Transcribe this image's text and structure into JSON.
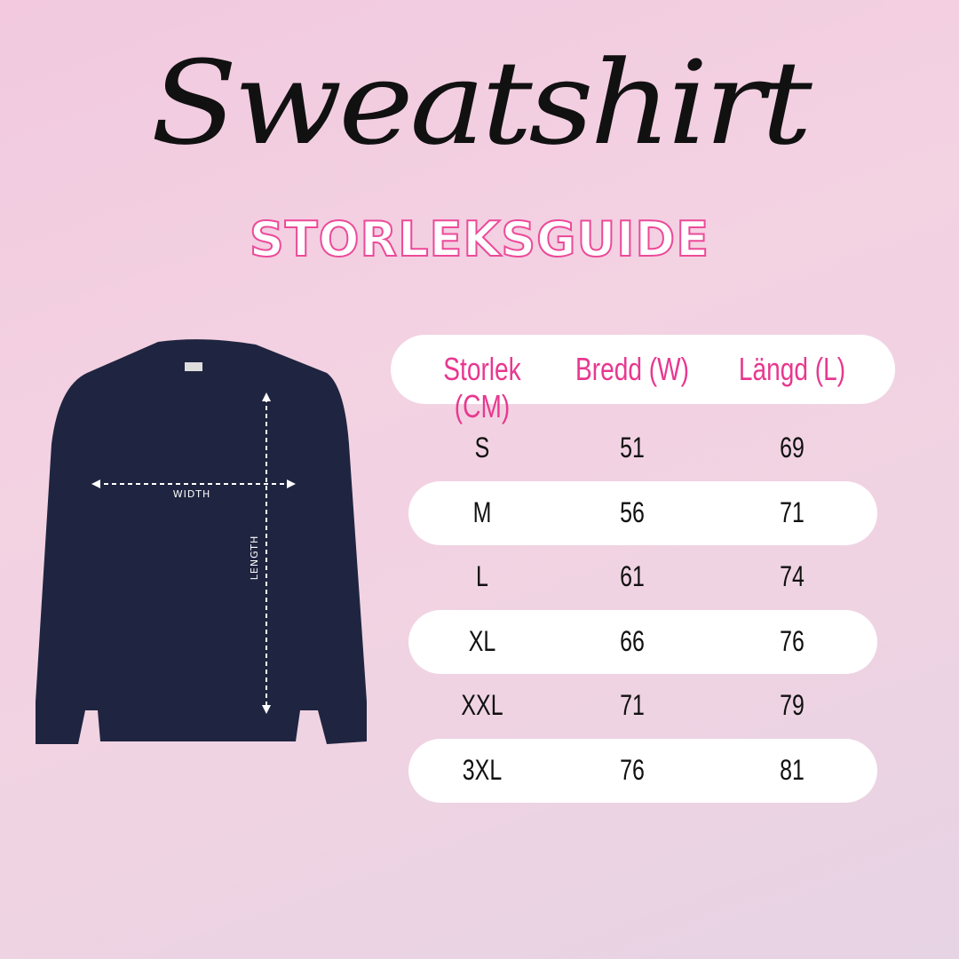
{
  "title": "Sweatshirt",
  "subtitle": "STORLEKSGUIDE",
  "diagram": {
    "width_label": "WIDTH",
    "length_label": "LENGTH"
  },
  "table": {
    "headers": [
      "Storlek (CM)",
      "Bredd (W)",
      "Längd (L)"
    ],
    "rows": [
      [
        "S",
        "51",
        "69"
      ],
      [
        "M",
        "56",
        "71"
      ],
      [
        "L",
        "61",
        "74"
      ],
      [
        "XL",
        "66",
        "76"
      ],
      [
        "XXL",
        "71",
        "79"
      ],
      [
        "3XL",
        "76",
        "81"
      ]
    ]
  },
  "colors": {
    "accent": "#e8388f",
    "shirt": "#1f2540"
  }
}
